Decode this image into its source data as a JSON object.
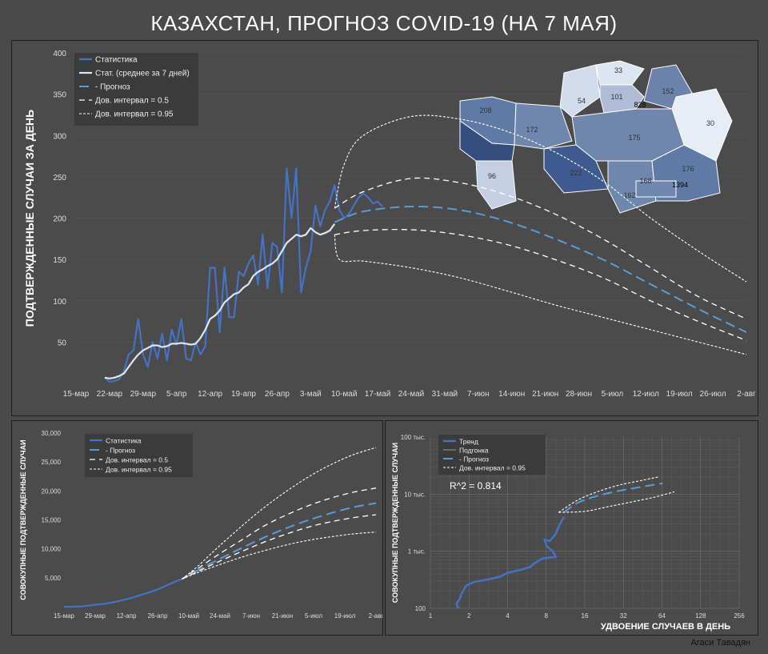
{
  "title": "КАЗАХСТАН, ПРОГНОЗ COVID-19 (НА 7 МАЯ)",
  "author": "Агаси Тавадян",
  "colors": {
    "background": "#4a4a4a",
    "stat": "#4472c4",
    "avg": "#dce6f2",
    "forecast": "#5b9bd5",
    "ci": "#ffffff"
  },
  "chart_data": [
    {
      "type": "line",
      "ylabel": "ПОДТВЕРЖДЕННЫЕ СЛУЧАИ ЗА ДЕНЬ",
      "ylim": [
        0,
        400
      ],
      "yticks": [
        50,
        100,
        150,
        200,
        250,
        300,
        350,
        400
      ],
      "xlim_day": [
        0,
        140
      ],
      "xticks": [
        "15-мар",
        "22-мар",
        "29-мар",
        "5-апр",
        "12-апр",
        "19-апр",
        "26-апр",
        "3-май",
        "10-май",
        "17-май",
        "24-май",
        "31-май",
        "7-июн",
        "14-июн",
        "21-июн",
        "28-июн",
        "5-июл",
        "12-июл",
        "19-июл",
        "26-июл",
        "2-авг"
      ],
      "x_start": "15-мар",
      "legend": [
        "Статистика",
        "Стат. (среднее за 7 дней)",
        "- Прогноз",
        "Дов. интервал = 0.5",
        "Дов. интервал = 0.95"
      ],
      "series": [
        {
          "name": "Статистика",
          "x": [
            6,
            7,
            8,
            9,
            10,
            11,
            12,
            13,
            14,
            15,
            16,
            17,
            18,
            19,
            20,
            21,
            22,
            23,
            24,
            25,
            26,
            27,
            28,
            29,
            30,
            31,
            32,
            33,
            34,
            35,
            36,
            37,
            38,
            39,
            40,
            41,
            42,
            43,
            44,
            45,
            46,
            47,
            48,
            49,
            50,
            51,
            52,
            53,
            54,
            55,
            56,
            57,
            58,
            59,
            60,
            61,
            62,
            63,
            64
          ],
          "y": [
            7,
            2,
            3,
            5,
            15,
            35,
            40,
            78,
            35,
            20,
            50,
            30,
            60,
            28,
            65,
            47,
            78,
            30,
            28,
            50,
            35,
            45,
            140,
            140,
            62,
            140,
            80,
            80,
            135,
            130,
            145,
            155,
            120,
            180,
            115,
            170,
            165,
            110,
            260,
            200,
            260,
            110,
            140,
            160,
            215,
            190,
            210,
            220,
            240,
            210,
            200,
            205,
            215,
            225,
            230,
            225,
            218,
            220,
            214
          ]
        },
        {
          "name": "Стат. (среднее за 7 дней)",
          "x": [
            6,
            7,
            8,
            9,
            10,
            11,
            12,
            13,
            14,
            15,
            16,
            17,
            18,
            19,
            20,
            21,
            22,
            23,
            24,
            25,
            26,
            27,
            28,
            29,
            30,
            31,
            32,
            33,
            34,
            35,
            36,
            37,
            38,
            39,
            40,
            41,
            42,
            43,
            44,
            45,
            46,
            47,
            48,
            49,
            50,
            51,
            52,
            53,
            54
          ],
          "y": [
            7,
            6,
            7,
            9,
            12,
            20,
            28,
            35,
            40,
            43,
            46,
            46,
            44,
            45,
            48,
            48,
            49,
            48,
            47,
            48,
            55,
            65,
            78,
            82,
            88,
            98,
            103,
            108,
            110,
            116,
            120,
            130,
            135,
            138,
            142,
            145,
            150,
            160,
            170,
            175,
            180,
            178,
            180,
            188,
            183,
            180,
            182,
            185,
            193
          ]
        },
        {
          "name": "- Прогноз",
          "x": [
            54,
            60,
            70,
            80,
            90,
            100,
            110,
            120,
            130,
            140
          ],
          "y": [
            195,
            208,
            214,
            210,
            196,
            175,
            150,
            120,
            90,
            62
          ]
        },
        {
          "name": "Дов. интервал = 0.5 (верх)",
          "x": [
            54,
            60,
            70,
            80,
            90,
            100,
            110,
            120,
            130,
            140
          ],
          "y": [
            212,
            232,
            248,
            243,
            228,
            205,
            175,
            140,
            105,
            78
          ]
        },
        {
          "name": "Дов. интервал = 0.5 (низ)",
          "x": [
            54,
            60,
            70,
            80,
            90,
            100,
            110,
            120,
            130,
            140
          ],
          "y": [
            180,
            185,
            186,
            180,
            168,
            150,
            128,
            100,
            75,
            52
          ]
        },
        {
          "name": "Дов. интервал = 0.95 (верх)",
          "x": [
            54,
            56,
            60,
            70,
            80,
            90,
            100,
            110,
            120,
            130,
            140
          ],
          "y": [
            212,
            265,
            300,
            323,
            320,
            305,
            280,
            245,
            200,
            160,
            123
          ]
        },
        {
          "name": "Дов. интервал = 0.95 (низ)",
          "x": [
            54,
            55,
            60,
            70,
            80,
            90,
            100,
            110,
            120,
            130,
            140
          ],
          "y": [
            180,
            150,
            148,
            140,
            128,
            112,
            95,
            80,
            65,
            50,
            35
          ]
        }
      ],
      "map_labels": [
        "33",
        "208",
        "54",
        "101",
        "828",
        "152",
        "172",
        "30",
        "175",
        "96",
        "222",
        "176",
        "168",
        "1394",
        "162"
      ]
    },
    {
      "type": "line",
      "ylabel": "СОВОКУПНЫЕ ПОДТВЕРЖДЕННЫЕ СЛУЧАИ",
      "ylim": [
        0,
        30000
      ],
      "yticks": [
        "5,000",
        "10,000",
        "15,000",
        "20,000",
        "25,000",
        "30,000"
      ],
      "xticks": [
        "15-мар",
        "29-мар",
        "12-апр",
        "26-апр",
        "10-май",
        "24-май",
        "7-июн",
        "21-июн",
        "5-июл",
        "19-июл",
        "2-авг"
      ],
      "legend": [
        "Статистика",
        "- Прогноз",
        "Дов. интервал = 0.5",
        "Дов. интервал = 0.95"
      ],
      "series": [
        {
          "name": "Статистика",
          "x": [
            0,
            7,
            14,
            21,
            28,
            35,
            42,
            49,
            53
          ],
          "y": [
            0,
            50,
            350,
            700,
            1300,
            2100,
            3000,
            4200,
            4800
          ]
        },
        {
          "name": "- Прогноз",
          "x": [
            53,
            60,
            70,
            80,
            90,
            100,
            110,
            120,
            130,
            140
          ],
          "y": [
            4800,
            6300,
            8300,
            10200,
            12000,
            13600,
            15000,
            16200,
            17200,
            17900
          ]
        },
        {
          "name": "Дов. интервал = 0.5 (верх)",
          "x": [
            53,
            60,
            70,
            80,
            90,
            100,
            110,
            120,
            130,
            140
          ],
          "y": [
            4800,
            6600,
            9200,
            11600,
            14000,
            15900,
            17500,
            18800,
            19800,
            20500
          ]
        },
        {
          "name": "Дов. интервал = 0.5 (низ)",
          "x": [
            53,
            60,
            70,
            80,
            90,
            100,
            110,
            120,
            130,
            140
          ],
          "y": [
            4800,
            6100,
            7900,
            9600,
            11200,
            12600,
            13800,
            14700,
            15400,
            15900
          ]
        },
        {
          "name": "Дов. интервал = 0.95 (верх)",
          "x": [
            53,
            60,
            70,
            80,
            90,
            100,
            110,
            120,
            130,
            140
          ],
          "y": [
            4800,
            7000,
            10600,
            14000,
            17200,
            20000,
            22500,
            24600,
            26300,
            27500
          ]
        },
        {
          "name": "Дов. интервал = 0.95 (низ)",
          "x": [
            53,
            60,
            70,
            80,
            90,
            100,
            110,
            120,
            130,
            140
          ],
          "y": [
            4800,
            5900,
            7300,
            8600,
            9700,
            10700,
            11500,
            12100,
            12600,
            12900
          ]
        }
      ]
    },
    {
      "type": "line",
      "xlabel": "УДВОЕНИЕ СЛУЧАЕВ В ДЕНЬ",
      "ylabel": "СОВОКУПНЫЕ ПОДТВЕРЖДЕННЫЕ СЛУЧАИ",
      "xscale": "log2",
      "yscale": "log10",
      "xlim": [
        1,
        256
      ],
      "ylim": [
        100,
        100000
      ],
      "xticks": [
        "1",
        "2",
        "4",
        "8",
        "16",
        "32",
        "64",
        "128",
        "256"
      ],
      "yticks": [
        "100",
        "1 тыс.",
        "10 тыс.",
        "100 тыс."
      ],
      "annotation": "R^2 = 0.814",
      "legend": [
        "Тренд",
        "Подгонка",
        "- Прогноз",
        "Дов. интервал = 0.95"
      ],
      "series": [
        {
          "name": "Тренд",
          "x": [
            1.65,
            1.6,
            1.7,
            1.75,
            1.9,
            2.2,
            2.6,
            3.0,
            3.5,
            4.0,
            5.0,
            6.0,
            6.5,
            7.5,
            9.5,
            9.0,
            8.0,
            7.8,
            8.5,
            9.5,
            10.0,
            11.0
          ],
          "y": [
            100,
            120,
            150,
            180,
            250,
            290,
            310,
            330,
            360,
            420,
            470,
            530,
            620,
            750,
            800,
            1000,
            1250,
            1600,
            1500,
            2000,
            2700,
            4000
          ]
        },
        {
          "name": "- Прогноз",
          "x": [
            11,
            14,
            20,
            30,
            45,
            65
          ],
          "y": [
            4800,
            7000,
            9300,
            11500,
            13500,
            15500
          ]
        },
        {
          "name": "Дов. интервал = 0.95 (верх)",
          "x": [
            10,
            14,
            20,
            30,
            45,
            60
          ],
          "y": [
            4800,
            7800,
            11000,
            14500,
            17500,
            20000
          ]
        },
        {
          "name": "Дов. интервал = 0.95 (низ)",
          "x": [
            10,
            16,
            24,
            36,
            55,
            80
          ],
          "y": [
            4800,
            5000,
            6000,
            7200,
            8800,
            11000
          ]
        }
      ]
    }
  ]
}
